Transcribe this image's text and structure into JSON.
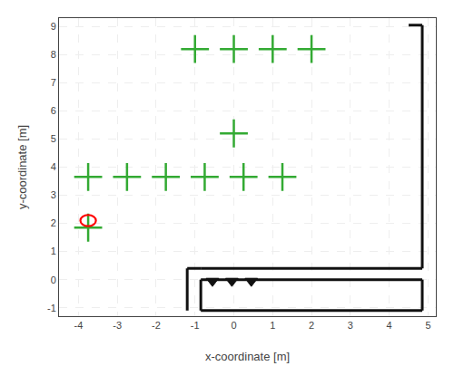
{
  "chart_data": {
    "type": "scatter",
    "xlabel": "x-coordinate [m]",
    "ylabel": "y-coordinate [m]",
    "xlim": [
      -4.5,
      5.2
    ],
    "ylim": [
      -1.3,
      9.3
    ],
    "xticks": [
      -4,
      -3,
      -2,
      -1,
      0,
      1,
      2,
      3,
      4,
      5
    ],
    "yticks": [
      -1,
      0,
      1,
      2,
      3,
      4,
      5,
      6,
      7,
      8,
      9
    ],
    "grid": true,
    "series": [
      {
        "type": "scatter",
        "marker": "cross",
        "color": "#33aa33",
        "x": [
          -3.75,
          -2.75,
          -1.75,
          -0.75,
          0.25,
          1.25,
          -1.0,
          0.0,
          1.0,
          2.0,
          0.0,
          -3.75
        ],
        "y": [
          3.65,
          3.65,
          3.65,
          3.65,
          3.65,
          3.65,
          8.2,
          8.2,
          8.2,
          8.2,
          5.2,
          1.85
        ]
      },
      {
        "type": "line",
        "color": "#111111",
        "line_style": "solid",
        "x": [
          4.85,
          4.85,
          null,
          4.5,
          4.85,
          null,
          -0.85,
          4.85,
          null,
          4.85,
          4.85,
          null,
          -0.85,
          4.85,
          null,
          -1.2,
          -1.2,
          null,
          -0.85,
          -0.85,
          null,
          -1.2,
          -0.85,
          null,
          -0.85,
          4.85
        ],
        "y": [
          0.4,
          9.05,
          null,
          9.05,
          9.05,
          null,
          0.4,
          0.4,
          null,
          -1.1,
          0.0,
          null,
          -1.1,
          -1.1,
          null,
          -1.1,
          0.4,
          null,
          -1.1,
          0.0,
          null,
          0.4,
          0.4,
          null,
          0.0,
          0.0
        ]
      },
      {
        "type": "circle",
        "color": "#ff0000",
        "x": [
          -3.75
        ],
        "y": [
          2.1
        ],
        "radius": 0.2
      },
      {
        "type": "scatter",
        "marker": "triangle-down",
        "color": "#111111",
        "x": [
          -0.55,
          -0.05,
          0.45
        ],
        "y": [
          -0.05,
          -0.05,
          -0.05
        ]
      }
    ]
  }
}
